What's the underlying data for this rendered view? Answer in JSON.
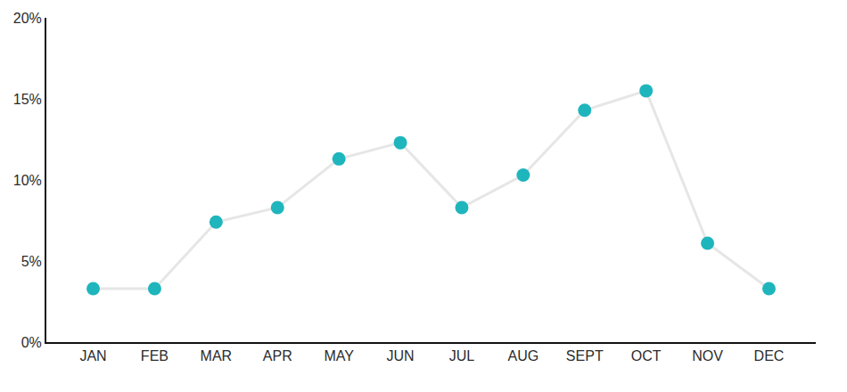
{
  "chart_data": {
    "type": "line",
    "categories": [
      "JAN",
      "FEB",
      "MAR",
      "APR",
      "MAY",
      "JUN",
      "JUL",
      "AUG",
      "SEPT",
      "OCT",
      "NOV",
      "DEC"
    ],
    "values": [
      3.3,
      3.3,
      7.4,
      8.3,
      11.3,
      12.3,
      8.3,
      10.3,
      14.3,
      15.5,
      6.1,
      3.3
    ],
    "color": "#1fb5bd",
    "marker": "circle",
    "line_style": "solid",
    "ylim": [
      0,
      20
    ],
    "yticks": [
      {
        "value": 0,
        "label": "0%"
      },
      {
        "value": 5,
        "label": "5%"
      },
      {
        "value": 10,
        "label": "10%"
      },
      {
        "value": 15,
        "label": "15%"
      },
      {
        "value": 20,
        "label": "20%"
      }
    ],
    "grid": false
  }
}
